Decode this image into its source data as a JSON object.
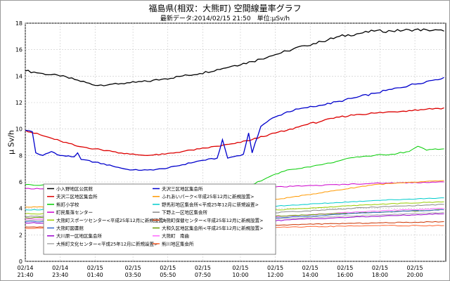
{
  "chart_data": {
    "type": "line",
    "title": "福島県(相双：大熊町) 空間線量率グラフ",
    "subtitle": "最新データ:2014/02/15 21:50　単位:μSv/h",
    "ylabel": "μ Sv/h",
    "xlabel": "",
    "ylim": [
      0,
      18
    ],
    "yticks": [
      0,
      2,
      4,
      6,
      8,
      10,
      12,
      14,
      16,
      18
    ],
    "ytick_labels": [
      "0",
      "2",
      "4",
      "6",
      "8",
      "10",
      "12",
      "14",
      "16",
      "18"
    ],
    "xlim": [
      0,
      24.1
    ],
    "grid": true,
    "x_ticks": [
      {
        "x": 0,
        "date": "02/14",
        "time": "21:40"
      },
      {
        "x": 2,
        "date": "02/14",
        "time": "23:40"
      },
      {
        "x": 4,
        "date": "02/15",
        "time": "01:40"
      },
      {
        "x": 6.17,
        "date": "02/15",
        "time": "03:50"
      },
      {
        "x": 8.17,
        "date": "02/15",
        "time": "05:50"
      },
      {
        "x": 10.17,
        "date": "02/15",
        "time": "07:50"
      },
      {
        "x": 12.33,
        "date": "02/15",
        "time": "10:00"
      },
      {
        "x": 14.33,
        "date": "02/15",
        "time": "12:00"
      },
      {
        "x": 16.33,
        "date": "02/15",
        "time": "14:00"
      },
      {
        "x": 18.33,
        "date": "02/15",
        "time": "16:00"
      },
      {
        "x": 20.33,
        "date": "02/15",
        "time": "18:00"
      },
      {
        "x": 22.33,
        "date": "02/15",
        "time": "20:00"
      }
    ],
    "legend_position": "bottom-left",
    "series": [
      {
        "name": "小入野地区公民館",
        "color": "#000000",
        "x": [
          0,
          1,
          2,
          3,
          4,
          5,
          6,
          7,
          8,
          9,
          10,
          11,
          12,
          13,
          14,
          15,
          16,
          17,
          18,
          19,
          20,
          21,
          22,
          23,
          24
        ],
        "values": [
          14.4,
          14.2,
          14.0,
          13.7,
          13.3,
          13.4,
          13.5,
          13.6,
          13.8,
          14.0,
          14.2,
          14.5,
          14.8,
          15.1,
          15.5,
          15.9,
          16.3,
          16.6,
          17.0,
          17.2,
          17.4,
          17.4,
          17.5,
          17.5,
          17.4
        ]
      },
      {
        "name": "夫沢三区地区集会所",
        "color": "#0000cc",
        "x": [
          0,
          0.4,
          0.6,
          1.0,
          1.5,
          2.0,
          2.8,
          3.0,
          3.2,
          4,
          5,
          6,
          7,
          8,
          9,
          10,
          11,
          11.3,
          11.6,
          12.5,
          12.8,
          13.0,
          13.5,
          14,
          15,
          16,
          17,
          18,
          19,
          20,
          21,
          22,
          23,
          24
        ],
        "values": [
          9.9,
          9.8,
          8.2,
          8.0,
          8.3,
          8.0,
          7.9,
          8.2,
          7.7,
          7.5,
          7.2,
          6.9,
          6.9,
          7.0,
          7.3,
          7.6,
          7.8,
          9.2,
          7.8,
          8.1,
          9.7,
          8.2,
          10.2,
          10.7,
          11.3,
          11.6,
          11.8,
          12.1,
          12.4,
          12.7,
          13.0,
          13.3,
          13.6,
          13.9
        ]
      },
      {
        "name": "夫沢二区地区集会所",
        "color": "#dd0000",
        "x": [
          0,
          1,
          2,
          3,
          4,
          5,
          6,
          7,
          8,
          9,
          10,
          11,
          12,
          13,
          14,
          15,
          16,
          17,
          18,
          19,
          20,
          21,
          22,
          23,
          24
        ],
        "values": [
          9.9,
          9.5,
          9.1,
          8.7,
          8.5,
          8.3,
          8.1,
          8.0,
          8.1,
          8.3,
          8.5,
          8.7,
          8.9,
          9.2,
          9.6,
          9.9,
          10.3,
          10.6,
          10.9,
          11.1,
          11.2,
          11.3,
          11.4,
          11.5,
          11.6
        ]
      },
      {
        "name": "ふれあいパーク<平成25年12月に新規設置>",
        "color": "#ff9900",
        "x": [
          0,
          4,
          8,
          12,
          16,
          20,
          24
        ],
        "values": [
          4.1,
          4.1,
          4.1,
          4.2,
          5.0,
          5.8,
          6.1
        ]
      },
      {
        "name": "熊町小学校",
        "color": "#00cc00",
        "x": [
          0,
          2,
          4,
          6,
          8,
          10,
          12,
          13,
          14,
          15,
          16,
          17,
          18,
          19,
          20,
          21,
          22,
          22.5,
          23,
          23.5,
          24
        ],
        "values": [
          5.8,
          5.7,
          5.6,
          5.5,
          5.4,
          5.5,
          5.6,
          5.8,
          6.4,
          6.9,
          7.1,
          7.3,
          7.6,
          7.9,
          8.0,
          8.1,
          8.3,
          8.7,
          8.4,
          8.5,
          8.5
        ]
      },
      {
        "name": "野馬形地区集会所<平成25年12月に新規設置>",
        "color": "#00cccc",
        "x": [
          0,
          4,
          8,
          12,
          16,
          20,
          24
        ],
        "values": [
          3.9,
          3.9,
          3.9,
          4.0,
          4.3,
          4.6,
          4.8
        ]
      },
      {
        "name": "町民集落センター",
        "color": "#cc00cc",
        "x": [
          0,
          4,
          8,
          12,
          16,
          20,
          24
        ],
        "values": [
          5.5,
          5.5,
          5.5,
          5.5,
          5.7,
          5.9,
          6.0
        ]
      },
      {
        "name": "下野上一区地区集会所",
        "color": "#888888",
        "x": [
          0,
          4,
          8,
          12,
          16,
          20,
          24
        ],
        "values": [
          3.4,
          3.4,
          3.4,
          3.5,
          3.8,
          4.1,
          4.3
        ]
      },
      {
        "name": "大熊町スポーツセンター<平成25年12月に新規設置>",
        "color": "#99cc00",
        "x": [
          0,
          4,
          8,
          12,
          16,
          20,
          24
        ],
        "values": [
          3.6,
          3.6,
          3.6,
          3.7,
          4.0,
          4.3,
          4.5
        ]
      },
      {
        "name": "大熊町保健センター<平成25年12月に新規設置>",
        "color": "#cc3300",
        "x": [
          0,
          4,
          8,
          12,
          16,
          20,
          24
        ],
        "values": [
          2.6,
          2.6,
          2.6,
          2.6,
          2.8,
          2.9,
          3.0
        ]
      },
      {
        "name": "大熊町図書館",
        "color": "#3366cc",
        "x": [
          0,
          4,
          8,
          12,
          16,
          20,
          24
        ],
        "values": [
          3.0,
          3.0,
          3.0,
          3.1,
          3.4,
          3.7,
          3.9
        ]
      },
      {
        "name": "大和久区地区集会所<平成25年12月に新規設置>",
        "color": "#669900",
        "x": [
          0,
          4,
          8,
          12,
          16,
          20,
          24
        ],
        "values": [
          3.3,
          3.3,
          3.3,
          3.3,
          3.5,
          3.7,
          3.9
        ]
      },
      {
        "name": "大川原一区地区集会所",
        "color": "#9900cc",
        "x": [
          0,
          4,
          8,
          12,
          16,
          20,
          24
        ],
        "values": [
          2.9,
          2.9,
          2.9,
          2.9,
          3.2,
          3.4,
          3.6
        ]
      },
      {
        "name": "大熊町　南曲",
        "color": "#ff66ff",
        "x": [
          0,
          4,
          8,
          12,
          16,
          20,
          24
        ],
        "values": [
          3.2,
          3.2,
          3.2,
          3.2,
          3.5,
          3.8,
          4.0
        ]
      },
      {
        "name": "大熊町文化センター<平成25年12月に新規設置>",
        "color": "#aaaaaa",
        "x": [
          0,
          4,
          8,
          12,
          16,
          20,
          24
        ],
        "values": [
          3.1,
          3.1,
          3.1,
          3.1,
          3.3,
          3.5,
          3.7
        ]
      },
      {
        "name": "熊川地区集会所",
        "color": "#ff6633",
        "x": [
          0,
          4,
          8,
          12,
          16,
          20,
          24
        ],
        "values": [
          2.5,
          2.5,
          2.5,
          2.5,
          2.6,
          2.7,
          2.7
        ]
      }
    ]
  }
}
